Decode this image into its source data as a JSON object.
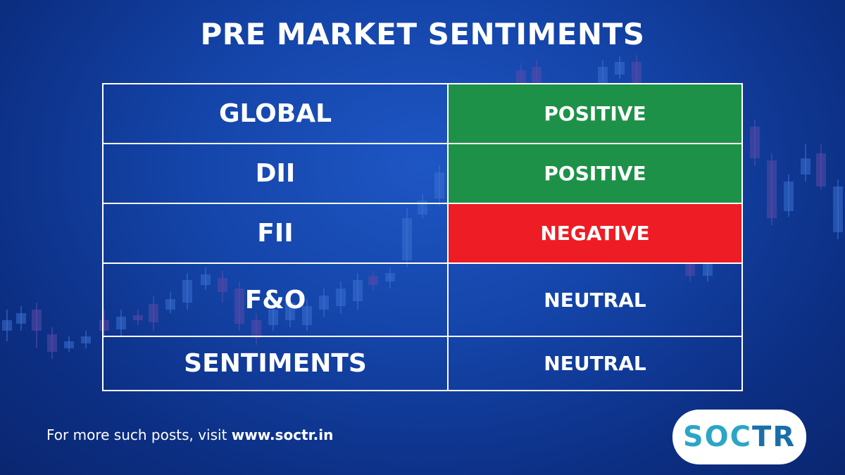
{
  "title": "PRE MARKET SENTIMENTS",
  "colors": {
    "positive": "#1e9148",
    "negative": "#ee1c24",
    "neutral": "transparent",
    "background": "#1444a8"
  },
  "rows": [
    {
      "label": "GLOBAL",
      "value": "POSITIVE",
      "status": "positive"
    },
    {
      "label": "DII",
      "value": "POSITIVE",
      "status": "positive"
    },
    {
      "label": "FII",
      "value": "NEGATIVE",
      "status": "negative"
    },
    {
      "label": "F&O",
      "value": "NEUTRAL",
      "status": "neutral"
    },
    {
      "label": "SENTIMENTS",
      "value": "NEUTRAL",
      "status": "neutral"
    }
  ],
  "footer": {
    "prefix": "For more such posts, visit ",
    "link": "www.soctr.in"
  },
  "logo": {
    "part1": "SOC",
    "part2": "TR"
  }
}
